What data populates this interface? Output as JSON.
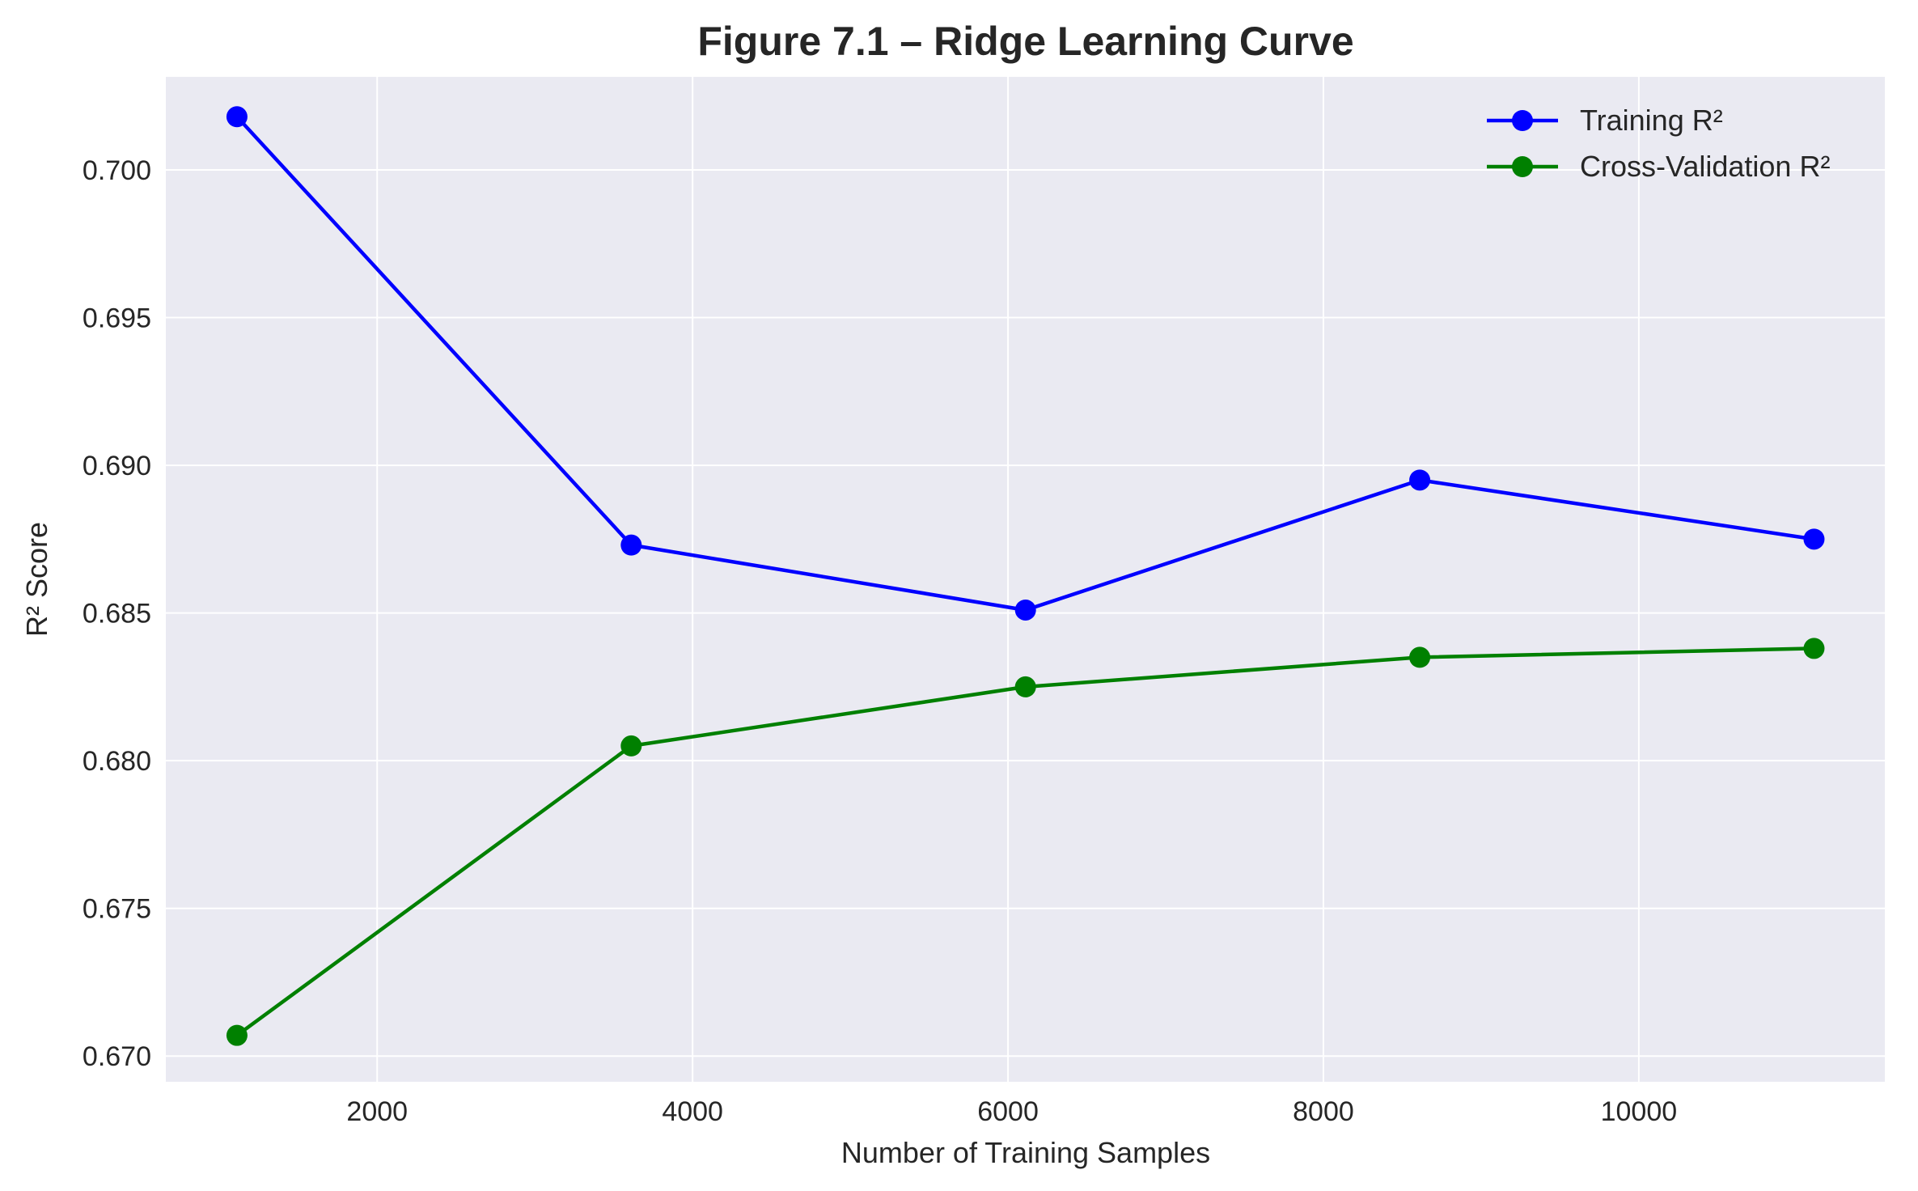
{
  "chart_data": {
    "type": "line",
    "title": "Figure 7.1 – Ridge Learning Curve",
    "xlabel": "Number of Training Samples",
    "ylabel": "R² Score",
    "xlim": [
      660,
      11560
    ],
    "ylim": [
      0.66913,
      0.70315
    ],
    "xticks": [
      2000,
      4000,
      6000,
      8000,
      10000
    ],
    "yticks": [
      0.67,
      0.675,
      0.68,
      0.685,
      0.69,
      0.695,
      0.7
    ],
    "xtick_labels": [
      "2000",
      "4000",
      "6000",
      "8000",
      "10000"
    ],
    "ytick_labels": [
      "0.670",
      "0.675",
      "0.680",
      "0.685",
      "0.690",
      "0.695",
      "0.700"
    ],
    "grid": true,
    "legend_position": "top-right",
    "x": [
      1111,
      3611,
      6111,
      8611,
      11111
    ],
    "series": [
      {
        "name": "Training R²",
        "color": "#0000ff",
        "marker": "circle",
        "values": [
          0.7018,
          0.6873,
          0.6851,
          0.6895,
          0.6875
        ]
      },
      {
        "name": "Cross-Validation R²",
        "color": "#008000",
        "marker": "circle",
        "values": [
          0.6707,
          0.6805,
          0.6825,
          0.6835,
          0.6838
        ]
      }
    ],
    "style": {
      "plot_background": "#eaeaf2",
      "grid_color": "#ffffff",
      "text_color": "#262626"
    }
  }
}
